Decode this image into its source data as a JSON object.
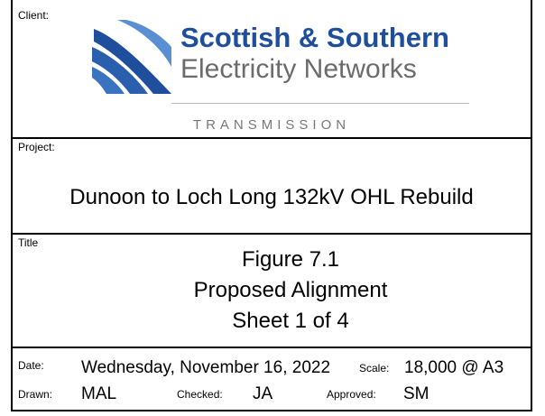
{
  "client": {
    "label": "Client:",
    "logo_line1": "Scottish & Southern",
    "logo_line2": "Electricity Networks",
    "logo_line3": "TRANSMISSION"
  },
  "project": {
    "label": "Project:",
    "name": "Dunoon to Loch Long 132kV OHL Rebuild"
  },
  "title": {
    "label": "Title",
    "lines": [
      "Figure 7.1",
      "Proposed Alignment",
      "Sheet 1 of 4"
    ]
  },
  "details": {
    "date_label": "Date:",
    "date": "Wednesday, November 16, 2022",
    "scale_label": "Scale:",
    "scale": "18,000 @ A3",
    "drawn_label": "Drawn:",
    "drawn": "MAL",
    "checked_label": "Checked:",
    "checked": "JA",
    "approved_label": "Approved:",
    "approved": "SM"
  }
}
